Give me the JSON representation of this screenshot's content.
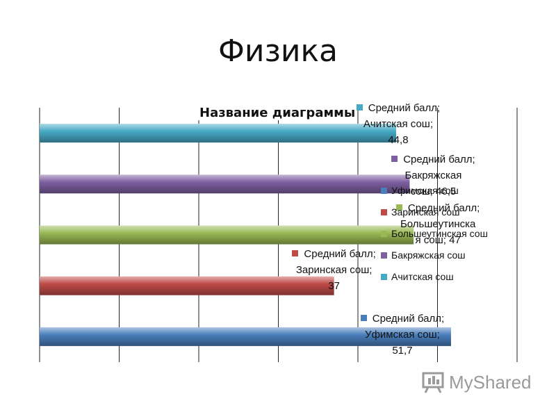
{
  "slide_title": "Физика",
  "chart_data": {
    "type": "bar",
    "orientation": "horizontal",
    "title": "Название диаграммы",
    "xlim": [
      0,
      60
    ],
    "grid": true,
    "categories_bottom_to_top": [
      "Уфимская сош",
      "Заринская сош",
      "Большеутинская сош",
      "Бакряжская сош",
      "Ачитская сош"
    ],
    "series": [
      {
        "name": "Средний балл",
        "category": "Уфимская сош",
        "value": 51.7,
        "color": "#4a7ebb",
        "label": [
          "Средний балл;",
          "Уфимская сош;",
          "51,7"
        ]
      },
      {
        "name": "Средний балл",
        "category": "Заринская сош",
        "value": 37,
        "color": "#be4b48",
        "label": [
          "Средний балл;",
          "Заринская сош;",
          "37"
        ]
      },
      {
        "name": "Средний балл",
        "category": "Большеутинская сош",
        "value": 47,
        "color": "#98b954",
        "label": [
          "Средний балл;",
          "Большеутинска",
          "я сош; 47"
        ]
      },
      {
        "name": "Средний балл",
        "category": "Бакряжская сош",
        "value": 46.5,
        "color": "#7d60a0",
        "label": [
          "Средний балл;",
          "Бакряжская",
          "сош; 46,5"
        ]
      },
      {
        "name": "Средний балл",
        "category": "Ачитская сош",
        "value": 44.8,
        "color": "#46aac5",
        "label": [
          "Средний балл;",
          "Ачитская сош;",
          "44,8"
        ]
      }
    ],
    "legend": {
      "position": "right",
      "items": [
        {
          "label": "Уфимская сош",
          "color": "#4a7ebb"
        },
        {
          "label": "Заринская сош",
          "color": "#be4b48"
        },
        {
          "label": "Большеутинская сош",
          "color": "#98b954"
        },
        {
          "label": "Бакряжская сош",
          "color": "#7d60a0"
        },
        {
          "label": "Ачитская сош",
          "color": "#46aac5"
        }
      ]
    }
  },
  "watermark": {
    "text": "MyShared",
    "icon": "presentation-board-icon"
  }
}
